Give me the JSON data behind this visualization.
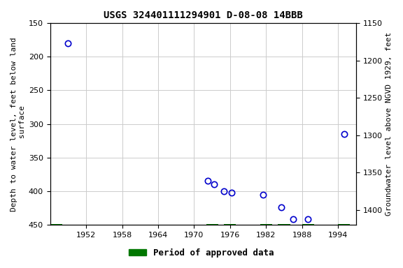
{
  "title": "USGS 324401111294901 D-08-08 14BBB",
  "ylabel_left": "Depth to water level, feet below land\n surface",
  "ylabel_right": "Groundwater level above NGVD 1929, feet",
  "xlim": [
    1946,
    1997
  ],
  "ylim_left": [
    150,
    450
  ],
  "ylim_right_top": 1420,
  "ylim_right_bottom": 1150,
  "xticks": [
    1952,
    1958,
    1964,
    1970,
    1976,
    1982,
    1988,
    1994
  ],
  "yticks_left": [
    150,
    200,
    250,
    300,
    350,
    400,
    450
  ],
  "yticks_right": [
    1150,
    1200,
    1250,
    1300,
    1350,
    1400
  ],
  "data_x": [
    1949.0,
    1972.3,
    1973.3,
    1975.0,
    1976.3,
    1981.5,
    1984.5,
    1986.5,
    1989.0,
    1995.0
  ],
  "data_y": [
    180,
    384,
    389,
    400,
    402,
    405,
    424,
    441,
    441,
    315
  ],
  "approved_x": [
    1946,
    1947,
    1972,
    1973,
    1975,
    1976,
    1981,
    1982,
    1984,
    1985,
    1988,
    1989,
    1994,
    1995
  ],
  "marker_color": "#0000cc",
  "marker_size": 6,
  "approved_color": "#007700",
  "background_color": "#ffffff",
  "grid_color": "#cccccc",
  "title_fontsize": 10,
  "axis_label_fontsize": 8,
  "tick_fontsize": 8,
  "legend_fontsize": 9
}
